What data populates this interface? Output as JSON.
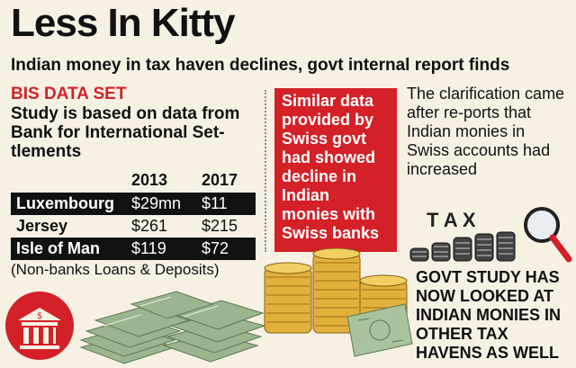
{
  "header": {
    "title": "Less In Kitty",
    "subtitle": "Indian money in tax haven declines, govt internal report finds"
  },
  "bis": {
    "label": "BIS DATA SET",
    "description": "Study is based on data from Bank for International Set-tlements",
    "year_2013": "2013",
    "year_2017": "2017",
    "rows": [
      {
        "country": "Luxembourg",
        "v2013": "$29mn",
        "v2017": "$11"
      },
      {
        "country": "Jersey",
        "v2013": "$261",
        "v2017": "$215"
      },
      {
        "country": "Isle of Man",
        "v2013": "$119",
        "v2017": "$72"
      }
    ],
    "note": "(Non-banks Loans & Deposits)"
  },
  "swiss_box": "Similar data provided by Swiss govt had showed decline in Indian monies with Swiss banks",
  "clarification": "The clarification came after re-ports that Indian monies in Swiss accounts had increased",
  "tax_label": "T A X",
  "govt_study": "GOVT STUDY HAS NOW LOOKED AT INDIAN MONIES IN OTHER TAX HAVENS AS WELL",
  "colors": {
    "accent_red": "#d42027",
    "background": "#f7f1e4",
    "coin_gold": "#e2b13c",
    "cash_green": "#8fae84"
  }
}
